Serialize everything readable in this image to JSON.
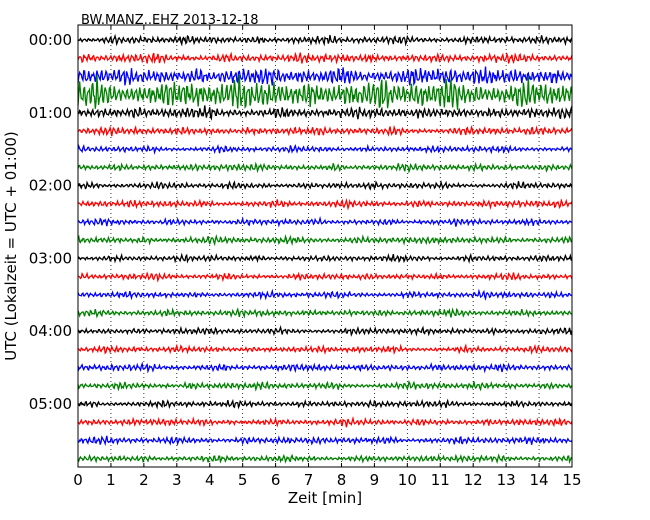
{
  "chart_data": {
    "type": "line",
    "title": "BW.MANZ..EHZ 2013-12-18",
    "xlabel": "Zeit  [min]",
    "ylabel": "UTC (Lokalzeit = UTC + 01:00)",
    "xlim": [
      0,
      15
    ],
    "x_ticks": [
      0,
      1,
      2,
      3,
      4,
      5,
      6,
      7,
      8,
      9,
      10,
      11,
      12,
      13,
      14,
      15
    ],
    "y_tick_labels": [
      "00:00",
      "01:00",
      "02:00",
      "03:00",
      "04:00",
      "05:00"
    ],
    "rows_per_hour": 4,
    "row_minutes": 15,
    "grid": "vertical-dotted",
    "legend": "none",
    "colors": [
      "#000000",
      "#ff0000",
      "#0000ff",
      "#008000"
    ],
    "rows": [
      {
        "start": "00:00",
        "amplitude": 0.25
      },
      {
        "start": "00:15",
        "amplitude": 0.28
      },
      {
        "start": "00:30",
        "amplitude": 0.55
      },
      {
        "start": "00:45",
        "amplitude": 0.95
      },
      {
        "start": "01:00",
        "amplitude": 0.35
      },
      {
        "start": "01:15",
        "amplitude": 0.25
      },
      {
        "start": "01:30",
        "amplitude": 0.2
      },
      {
        "start": "01:45",
        "amplitude": 0.22
      },
      {
        "start": "02:00",
        "amplitude": 0.2
      },
      {
        "start": "02:15",
        "amplitude": 0.22
      },
      {
        "start": "02:30",
        "amplitude": 0.2
      },
      {
        "start": "02:45",
        "amplitude": 0.22
      },
      {
        "start": "03:00",
        "amplitude": 0.2
      },
      {
        "start": "03:15",
        "amplitude": 0.2
      },
      {
        "start": "03:30",
        "amplitude": 0.2
      },
      {
        "start": "03:45",
        "amplitude": 0.22
      },
      {
        "start": "04:00",
        "amplitude": 0.2
      },
      {
        "start": "04:15",
        "amplitude": 0.2
      },
      {
        "start": "04:30",
        "amplitude": 0.22
      },
      {
        "start": "04:45",
        "amplitude": 0.22
      },
      {
        "start": "05:00",
        "amplitude": 0.2
      },
      {
        "start": "05:15",
        "amplitude": 0.22
      },
      {
        "start": "05:30",
        "amplitude": 0.22
      },
      {
        "start": "05:45",
        "amplitude": 0.2
      }
    ]
  }
}
